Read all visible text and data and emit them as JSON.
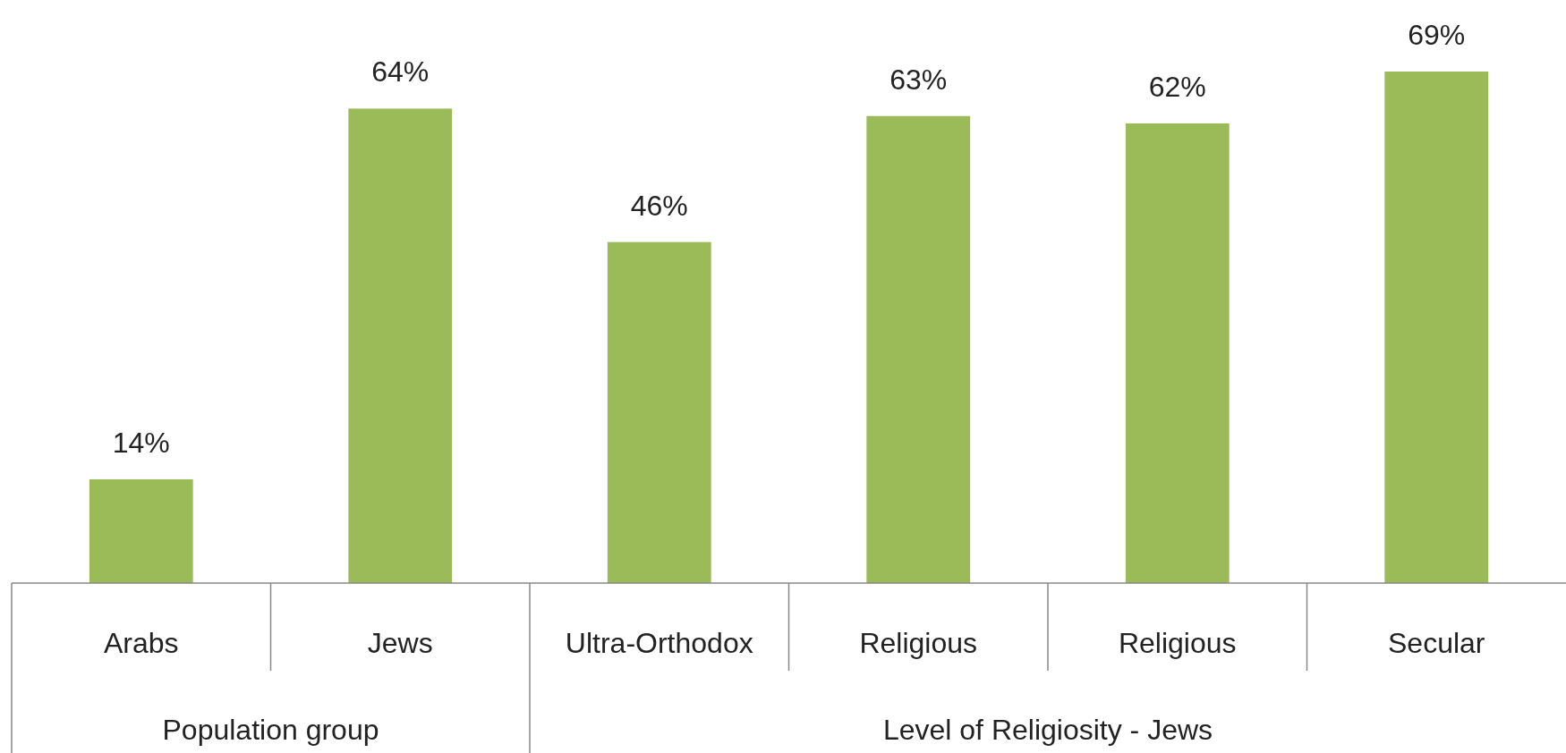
{
  "chart_data": {
    "type": "bar",
    "categories": [
      "Arabs",
      "Jews",
      "Ultra-Orthodox",
      "Religious",
      "Religious",
      "Secular"
    ],
    "values": [
      14,
      64,
      46,
      63,
      62,
      69
    ],
    "color": "#9bbb59",
    "value_labels": [
      "14%",
      "64%",
      "46%",
      "63%",
      "62%",
      "69%"
    ],
    "annotations": [
      "Population group",
      "Level of Religiosity - Jews"
    ]
  }
}
